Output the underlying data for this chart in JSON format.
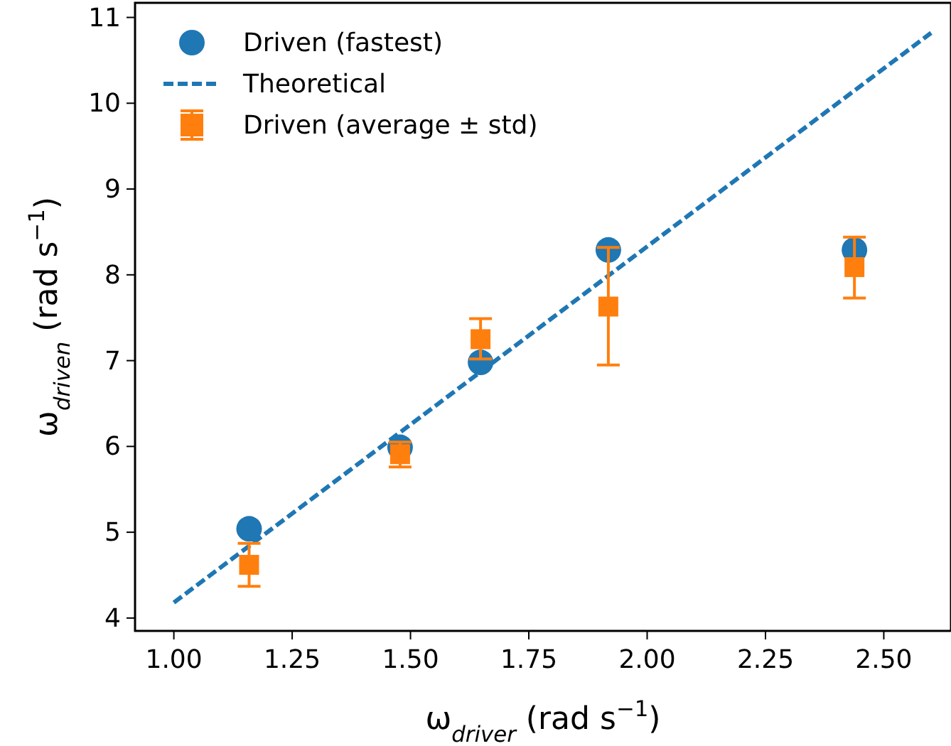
{
  "chart_data": {
    "type": "scatter",
    "xlabel": "ω$_{driver}$ (rad s$^{−1}$)",
    "ylabel": "ω$_{driven}$ (rad s$^{−1}$)",
    "xlim": [
      0.918,
      2.642
    ],
    "ylim": [
      3.85,
      11.17
    ],
    "xticks": [
      {
        "value": 1,
        "label": "1.00"
      },
      {
        "value": 1.25,
        "label": "1.25"
      },
      {
        "value": 1.5,
        "label": "1.50"
      },
      {
        "value": 1.75,
        "label": "1.75"
      },
      {
        "value": 2,
        "label": "2.00"
      },
      {
        "value": 2.25,
        "label": "2.25"
      },
      {
        "value": 2.5,
        "label": "2.50"
      }
    ],
    "yticks": [
      4,
      5,
      6,
      7,
      8,
      9,
      10,
      11
    ],
    "grid": false,
    "legend": "top left",
    "series": [
      {
        "name": "Driven (fastest)",
        "marker": "circle",
        "color": "#1f77b4",
        "x": [
          1.159,
          1.478,
          1.648,
          1.918,
          2.438
        ],
        "values": [
          5.04,
          5.99,
          6.98,
          8.29,
          8.29
        ]
      },
      {
        "name": "Theoretical",
        "type": "line",
        "marker": "none",
        "line_style": "dashed",
        "color": "#1f77b4",
        "x": [
          1.0,
          2.6
        ],
        "values": [
          4.18,
          10.82
        ]
      },
      {
        "name": "Driven (average ± std)",
        "marker": "square",
        "color": "#ff7f0e",
        "x": [
          1.159,
          1.478,
          1.648,
          1.918,
          2.438
        ],
        "values": [
          4.62,
          5.91,
          7.25,
          7.63,
          8.09
        ],
        "errors": [
          [
            4.37,
            4.87
          ],
          [
            5.76,
            6.05
          ],
          [
            7.02,
            7.49
          ],
          [
            6.95,
            8.32
          ],
          [
            7.73,
            8.44
          ]
        ]
      }
    ]
  }
}
